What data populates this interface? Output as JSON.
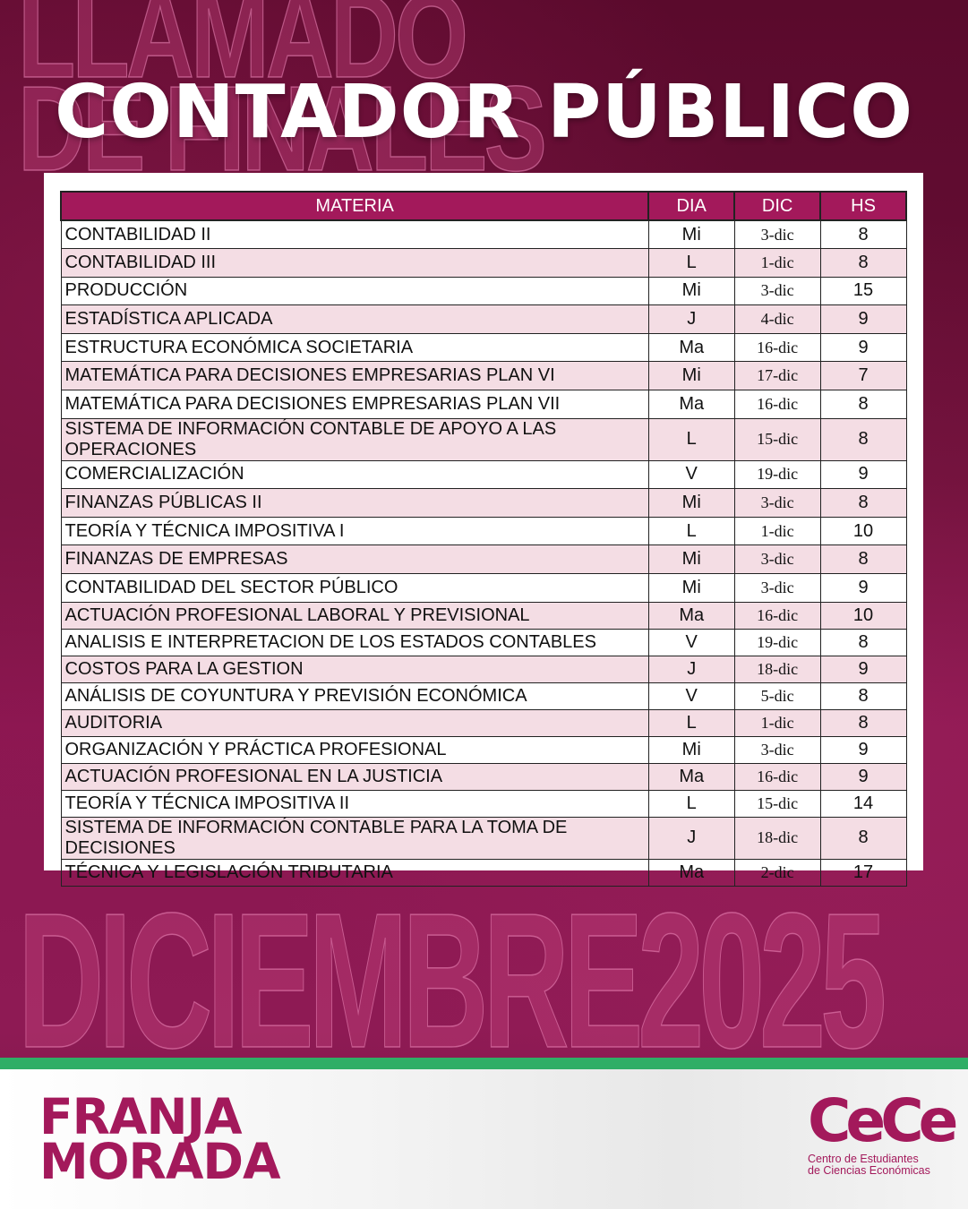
{
  "background_watermarks": {
    "top": [
      "LLAMADO",
      "DE FINALES"
    ],
    "bottom": "DICIEMBRE2025"
  },
  "title": "CONTADOR PÚBLICO",
  "table": {
    "headers": [
      "MATERIA",
      "DIA",
      "DIC",
      "HS"
    ],
    "rows": [
      [
        "CONTABILIDAD II",
        "Mi",
        "3-dic",
        "8"
      ],
      [
        "CONTABILIDAD III",
        "L",
        "1-dic",
        "8"
      ],
      [
        "PRODUCCIÓN",
        "Mi",
        "3-dic",
        "15"
      ],
      [
        "ESTADÍSTICA APLICADA",
        "J",
        "4-dic",
        "9"
      ],
      [
        "ESTRUCTURA ECONÓMICA SOCIETARIA",
        "Ma",
        "16-dic",
        "9"
      ],
      [
        "MATEMÁTICA PARA DECISIONES EMPRESARIAS PLAN VI",
        "Mi",
        "17-dic",
        "7"
      ],
      [
        "MATEMÁTICA PARA DECISIONES EMPRESARIAS PLAN VII",
        "Ma",
        "16-dic",
        "8"
      ],
      [
        "SISTEMA DE INFORMACIÓN CONTABLE DE APOYO A LAS OPERACIONES",
        "L",
        "15-dic",
        "8"
      ],
      [
        "COMERCIALIZACIÓN",
        "V",
        "19-dic",
        "9"
      ],
      [
        "FINANZAS PÚBLICAS II",
        "Mi",
        "3-dic",
        "8"
      ],
      [
        "TEORÍA Y TÉCNICA IMPOSITIVA I",
        "L",
        "1-dic",
        "10"
      ],
      [
        "FINANZAS DE EMPRESAS",
        "Mi",
        "3-dic",
        "8"
      ],
      [
        "CONTABILIDAD DEL SECTOR PÚBLICO",
        "Mi",
        "3-dic",
        "9"
      ],
      [
        "ACTUACIÓN PROFESIONAL LABORAL Y PREVISIONAL",
        "Ma",
        "16-dic",
        "10"
      ],
      [
        "ANALISIS E INTERPRETACION DE LOS ESTADOS CONTABLES",
        "V",
        "19-dic",
        "8"
      ],
      [
        "COSTOS PARA LA GESTION",
        "J",
        "18-dic",
        "9"
      ],
      [
        "ANÁLISIS DE COYUNTURA Y PREVISIÓN ECONÓMICA",
        "V",
        "5-dic",
        "8"
      ],
      [
        "AUDITORIA",
        "L",
        "1-dic",
        "8"
      ],
      [
        "ORGANIZACIÓN  Y PRÁCTICA PROFESIONAL",
        "Mi",
        "3-dic",
        "9"
      ],
      [
        "ACTUACIÓN PROFESIONAL EN LA JUSTICIA",
        "Ma",
        "16-dic",
        "9"
      ],
      [
        "TEORÍA Y TÉCNICA IMPOSITIVA II",
        "L",
        "15-dic",
        "14"
      ],
      [
        "SISTEMA DE INFORMACIÓN CONTABLE PARA LA TOMA DE DECISIONES",
        "J",
        "18-dic",
        "8"
      ],
      [
        "TÉCNICA Y LEGISLACIÓN TRIBUTARIA",
        "Ma",
        "2-dic",
        "17"
      ]
    ]
  },
  "footer": {
    "left_logo": [
      "FRANJA",
      "MORADA"
    ],
    "right_logo": {
      "mark": "CeCe",
      "subtitle": [
        "Centro de Estudiantes",
        "de Ciencias Económicas"
      ]
    }
  },
  "colors": {
    "primary": "#a3195b",
    "accent_green": "#2fae66",
    "row_alt": "#f4dde4"
  }
}
